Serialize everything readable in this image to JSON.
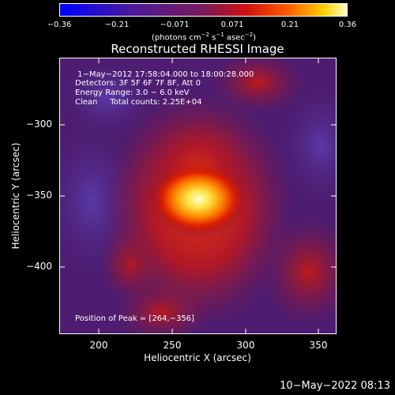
{
  "colorbar": {
    "ticks": [
      "−0.36",
      "−0.21",
      "−0.071",
      "0.071",
      "0.21",
      "0.36"
    ],
    "units_prefix": "(photons cm",
    "units_sup1": "−2",
    "units_mid1": " s",
    "units_sup2": "−1",
    "units_mid2": " asec",
    "units_sup3": "−2",
    "units_suffix": ")"
  },
  "title": "Reconstructed RHESSI Image",
  "info": {
    "time_range": " 1−May−2012 17:58:04.000 to 18:00:28.000",
    "detectors": "Detectors: 3F 5F 6F 7F 8F, Att 0",
    "energy": "Energy Range: 3.0 − 6.0 keV",
    "clean": "Clean     Total counts: 2.25E+04",
    "peak": "Position of Peak = [264,−356]"
  },
  "axes": {
    "xlabel": "Heliocentric X (arcsec)",
    "ylabel": "Heliocentric Y (arcsec)",
    "xticks": [
      "200",
      "250",
      "300",
      "350"
    ],
    "yticks": [
      "−300",
      "−350",
      "−400"
    ]
  },
  "timestamp": "10−May−2022 08:13",
  "colors": {
    "low": "#0000ff",
    "mid": "#6a2a8a",
    "high": "#ffff60"
  }
}
